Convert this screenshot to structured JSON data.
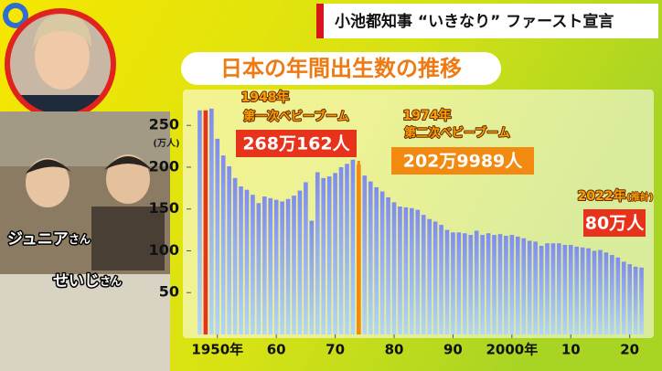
{
  "header": {
    "title": "小池都知事 “いきなり” ファースト宣言"
  },
  "photo_labels": [
    {
      "name": "ジュニア",
      "suffix": "さん"
    },
    {
      "name": "せいじ",
      "suffix": "さん"
    }
  ],
  "chart_data": {
    "type": "bar",
    "title": "日本の年間出生数の推移",
    "y_label": "(万人)",
    "color": "#8797ee",
    "x": [
      1947,
      1948,
      1949,
      1950,
      1951,
      1952,
      1953,
      1954,
      1955,
      1956,
      1957,
      1958,
      1959,
      1960,
      1961,
      1962,
      1963,
      1964,
      1965,
      1966,
      1967,
      1968,
      1969,
      1970,
      1971,
      1972,
      1973,
      1974,
      1975,
      1976,
      1977,
      1978,
      1979,
      1980,
      1981,
      1982,
      1983,
      1984,
      1985,
      1986,
      1987,
      1988,
      1989,
      1990,
      1991,
      1992,
      1993,
      1994,
      1995,
      1996,
      1997,
      1998,
      1999,
      2000,
      2001,
      2002,
      2003,
      2004,
      2005,
      2006,
      2007,
      2008,
      2009,
      2010,
      2011,
      2012,
      2013,
      2014,
      2015,
      2016,
      2017,
      2018,
      2019,
      2020,
      2021,
      2022
    ],
    "values": [
      268,
      268,
      270,
      234,
      214,
      201,
      187,
      177,
      173,
      167,
      157,
      165,
      163,
      161,
      159,
      162,
      166,
      172,
      182,
      136,
      194,
      187,
      189,
      193,
      200,
      204,
      209,
      203,
      190,
      183,
      176,
      171,
      164,
      158,
      153,
      152,
      151,
      149,
      143,
      138,
      135,
      131,
      125,
      122,
      122,
      121,
      119,
      124,
      119,
      121,
      119,
      120,
      118,
      119,
      117,
      115,
      112,
      111,
      106,
      109,
      109,
      109,
      107,
      107,
      105,
      104,
      103,
      100,
      101,
      98,
      95,
      92,
      87,
      84,
      81,
      80
    ],
    "xlim": [
      1946,
      2023
    ],
    "xticks": [
      {
        "value": 1950,
        "label": "1950年"
      },
      {
        "value": 1960,
        "label": "60"
      },
      {
        "value": 1970,
        "label": "70"
      },
      {
        "value": 1980,
        "label": "80"
      },
      {
        "value": 1990,
        "label": "90"
      },
      {
        "value": 2000,
        "label": "2000年"
      },
      {
        "value": 2010,
        "label": "10"
      },
      {
        "value": 2020,
        "label": "20"
      }
    ],
    "ylim": [
      0,
      290
    ],
    "yticks": [
      50,
      100,
      150,
      200,
      250
    ],
    "annotations": [
      {
        "x": {
          "value": 1948,
          "label": "1948年"
        },
        "text": "第一次ベビーブーム",
        "value_label": "268万162人",
        "color": "#e8331c"
      },
      {
        "x": {
          "value": 1974,
          "label": "1974年"
        },
        "text": "第二次ベビーブーム",
        "value_label": "202万9989人",
        "color": "#f28a12"
      },
      {
        "x": {
          "value": 2022,
          "label": "2022年"
        },
        "text": "(推計)",
        "value_label": "80万人",
        "color": "#e8331c"
      }
    ]
  }
}
